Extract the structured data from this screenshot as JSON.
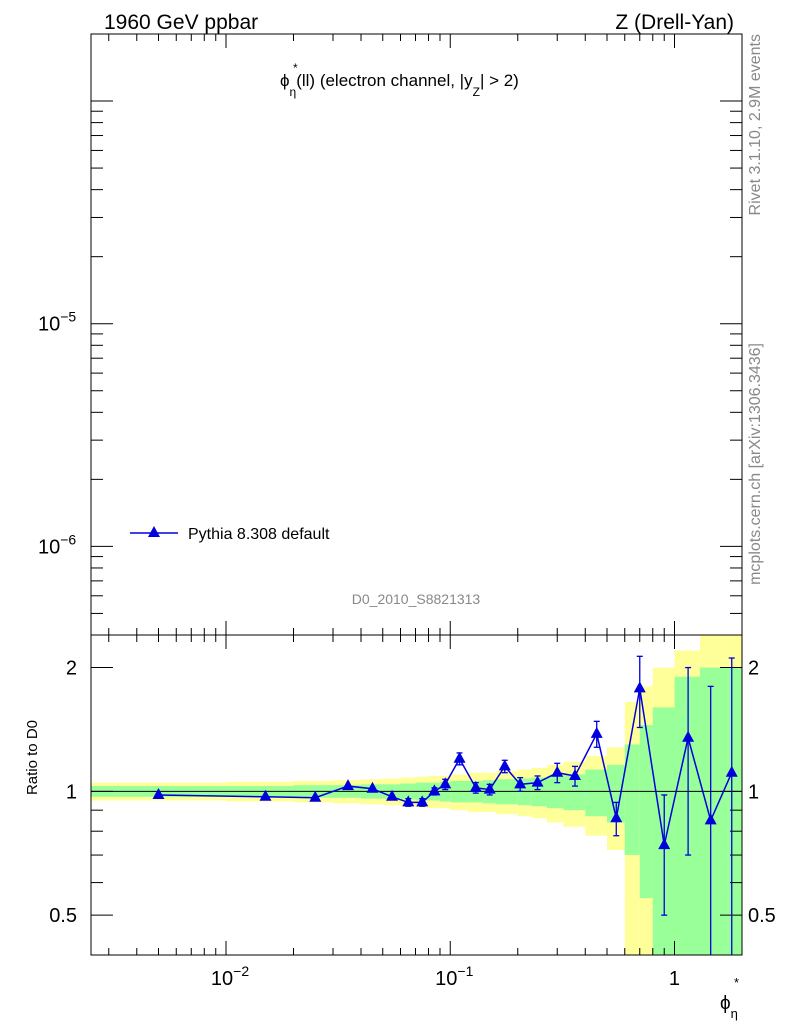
{
  "header": {
    "energy_label": "1960 GeV ppbar",
    "process_label": "Z (Drell-Yan)"
  },
  "side_labels": {
    "rivet": "Rivet 3.1.10,  2.9M events",
    "site": "mcplots.cern.ch [arXiv:1306.3436]"
  },
  "chart_data": [
    {
      "panel": "main",
      "type": "line",
      "title": {
        "phi": "ϕ",
        "star": "*",
        "eta": "η",
        "body": "(ll) (electron channel, |y",
        "sub": "Z",
        "tail": "| > 2)"
      },
      "analysis_id": "D0_2010_S8821313",
      "xscale": "log",
      "xlim": [
        0.0025,
        2.0
      ],
      "yscale": "log",
      "ylim": [
        4e-07,
        0.0002
      ],
      "yticks": [
        {
          "value": 1e-06,
          "base": "10",
          "exp": "−6"
        },
        {
          "value": 1e-05,
          "base": "10",
          "exp": "−5"
        }
      ],
      "legend": {
        "position": "top-left",
        "entries": [
          {
            "name": "Pythia 8.308 default",
            "color": "#0000dd",
            "marker": "triangle"
          }
        ]
      }
    },
    {
      "panel": "ratio",
      "type": "line",
      "ylabel": "Ratio to D0",
      "xscale": "log",
      "xlim": [
        0.0025,
        2.0
      ],
      "yscale": "log",
      "ylim": [
        0.4,
        2.4
      ],
      "yticks": [
        {
          "value": 0.5,
          "label": "0.5"
        },
        {
          "value": 1,
          "label": "1"
        },
        {
          "value": 2,
          "label": "2"
        }
      ],
      "xticks": [
        {
          "value": 0.01,
          "base": "10",
          "exp": "−2"
        },
        {
          "value": 0.1,
          "base": "10",
          "exp": "−1"
        },
        {
          "value": 1,
          "base": "1",
          "exp": ""
        }
      ],
      "xlabel": {
        "phi": "ϕ",
        "star": "*",
        "eta": "η"
      },
      "bands": {
        "edges": [
          0.0025,
          0.01,
          0.02,
          0.03,
          0.04,
          0.05,
          0.06,
          0.07,
          0.08,
          0.09,
          0.1,
          0.12,
          0.14,
          0.16,
          0.2,
          0.23,
          0.27,
          0.32,
          0.4,
          0.5,
          0.6,
          0.7,
          0.8,
          1.0,
          1.3,
          1.7,
          2.0
        ],
        "yellow": [
          0.05,
          0.055,
          0.06,
          0.065,
          0.07,
          0.075,
          0.08,
          0.085,
          0.09,
          0.09,
          0.1,
          0.11,
          0.11,
          0.12,
          0.13,
          0.14,
          0.16,
          0.18,
          0.22,
          0.28,
          0.65,
          0.8,
          1.0,
          1.2,
          1.4,
          1.4
        ],
        "green": [
          0.03,
          0.03,
          0.035,
          0.035,
          0.04,
          0.04,
          0.045,
          0.05,
          0.05,
          0.055,
          0.06,
          0.06,
          0.065,
          0.07,
          0.075,
          0.08,
          0.09,
          0.1,
          0.13,
          0.16,
          0.3,
          0.45,
          0.6,
          0.9,
          1.0,
          1.0
        ],
        "yellow_color": "#ffff99",
        "green_color": "#99ff99"
      },
      "series": [
        {
          "name": "Pythia 8.308 default",
          "color": "#0000dd",
          "x": [
            0.005,
            0.015,
            0.025,
            0.035,
            0.045,
            0.055,
            0.065,
            0.075,
            0.085,
            0.095,
            0.11,
            0.13,
            0.15,
            0.175,
            0.205,
            0.245,
            0.3,
            0.36,
            0.45,
            0.55,
            0.7,
            0.9,
            1.15,
            1.45,
            1.8
          ],
          "y": [
            0.98,
            0.97,
            0.965,
            1.03,
            1.015,
            0.97,
            0.94,
            0.94,
            1.0,
            1.04,
            1.2,
            1.02,
            1.01,
            1.15,
            1.04,
            1.05,
            1.11,
            1.09,
            1.38,
            0.86,
            1.78,
            0.74,
            1.35,
            0.85,
            1.11
          ],
          "err": [
            0.005,
            0.005,
            0.005,
            0.01,
            0.01,
            0.015,
            0.02,
            0.02,
            0.02,
            0.03,
            0.04,
            0.03,
            0.03,
            0.04,
            0.04,
            0.04,
            0.06,
            0.06,
            0.1,
            0.08,
            0.35,
            0.24,
            0.65,
            0.95,
            1.0
          ]
        }
      ]
    }
  ]
}
